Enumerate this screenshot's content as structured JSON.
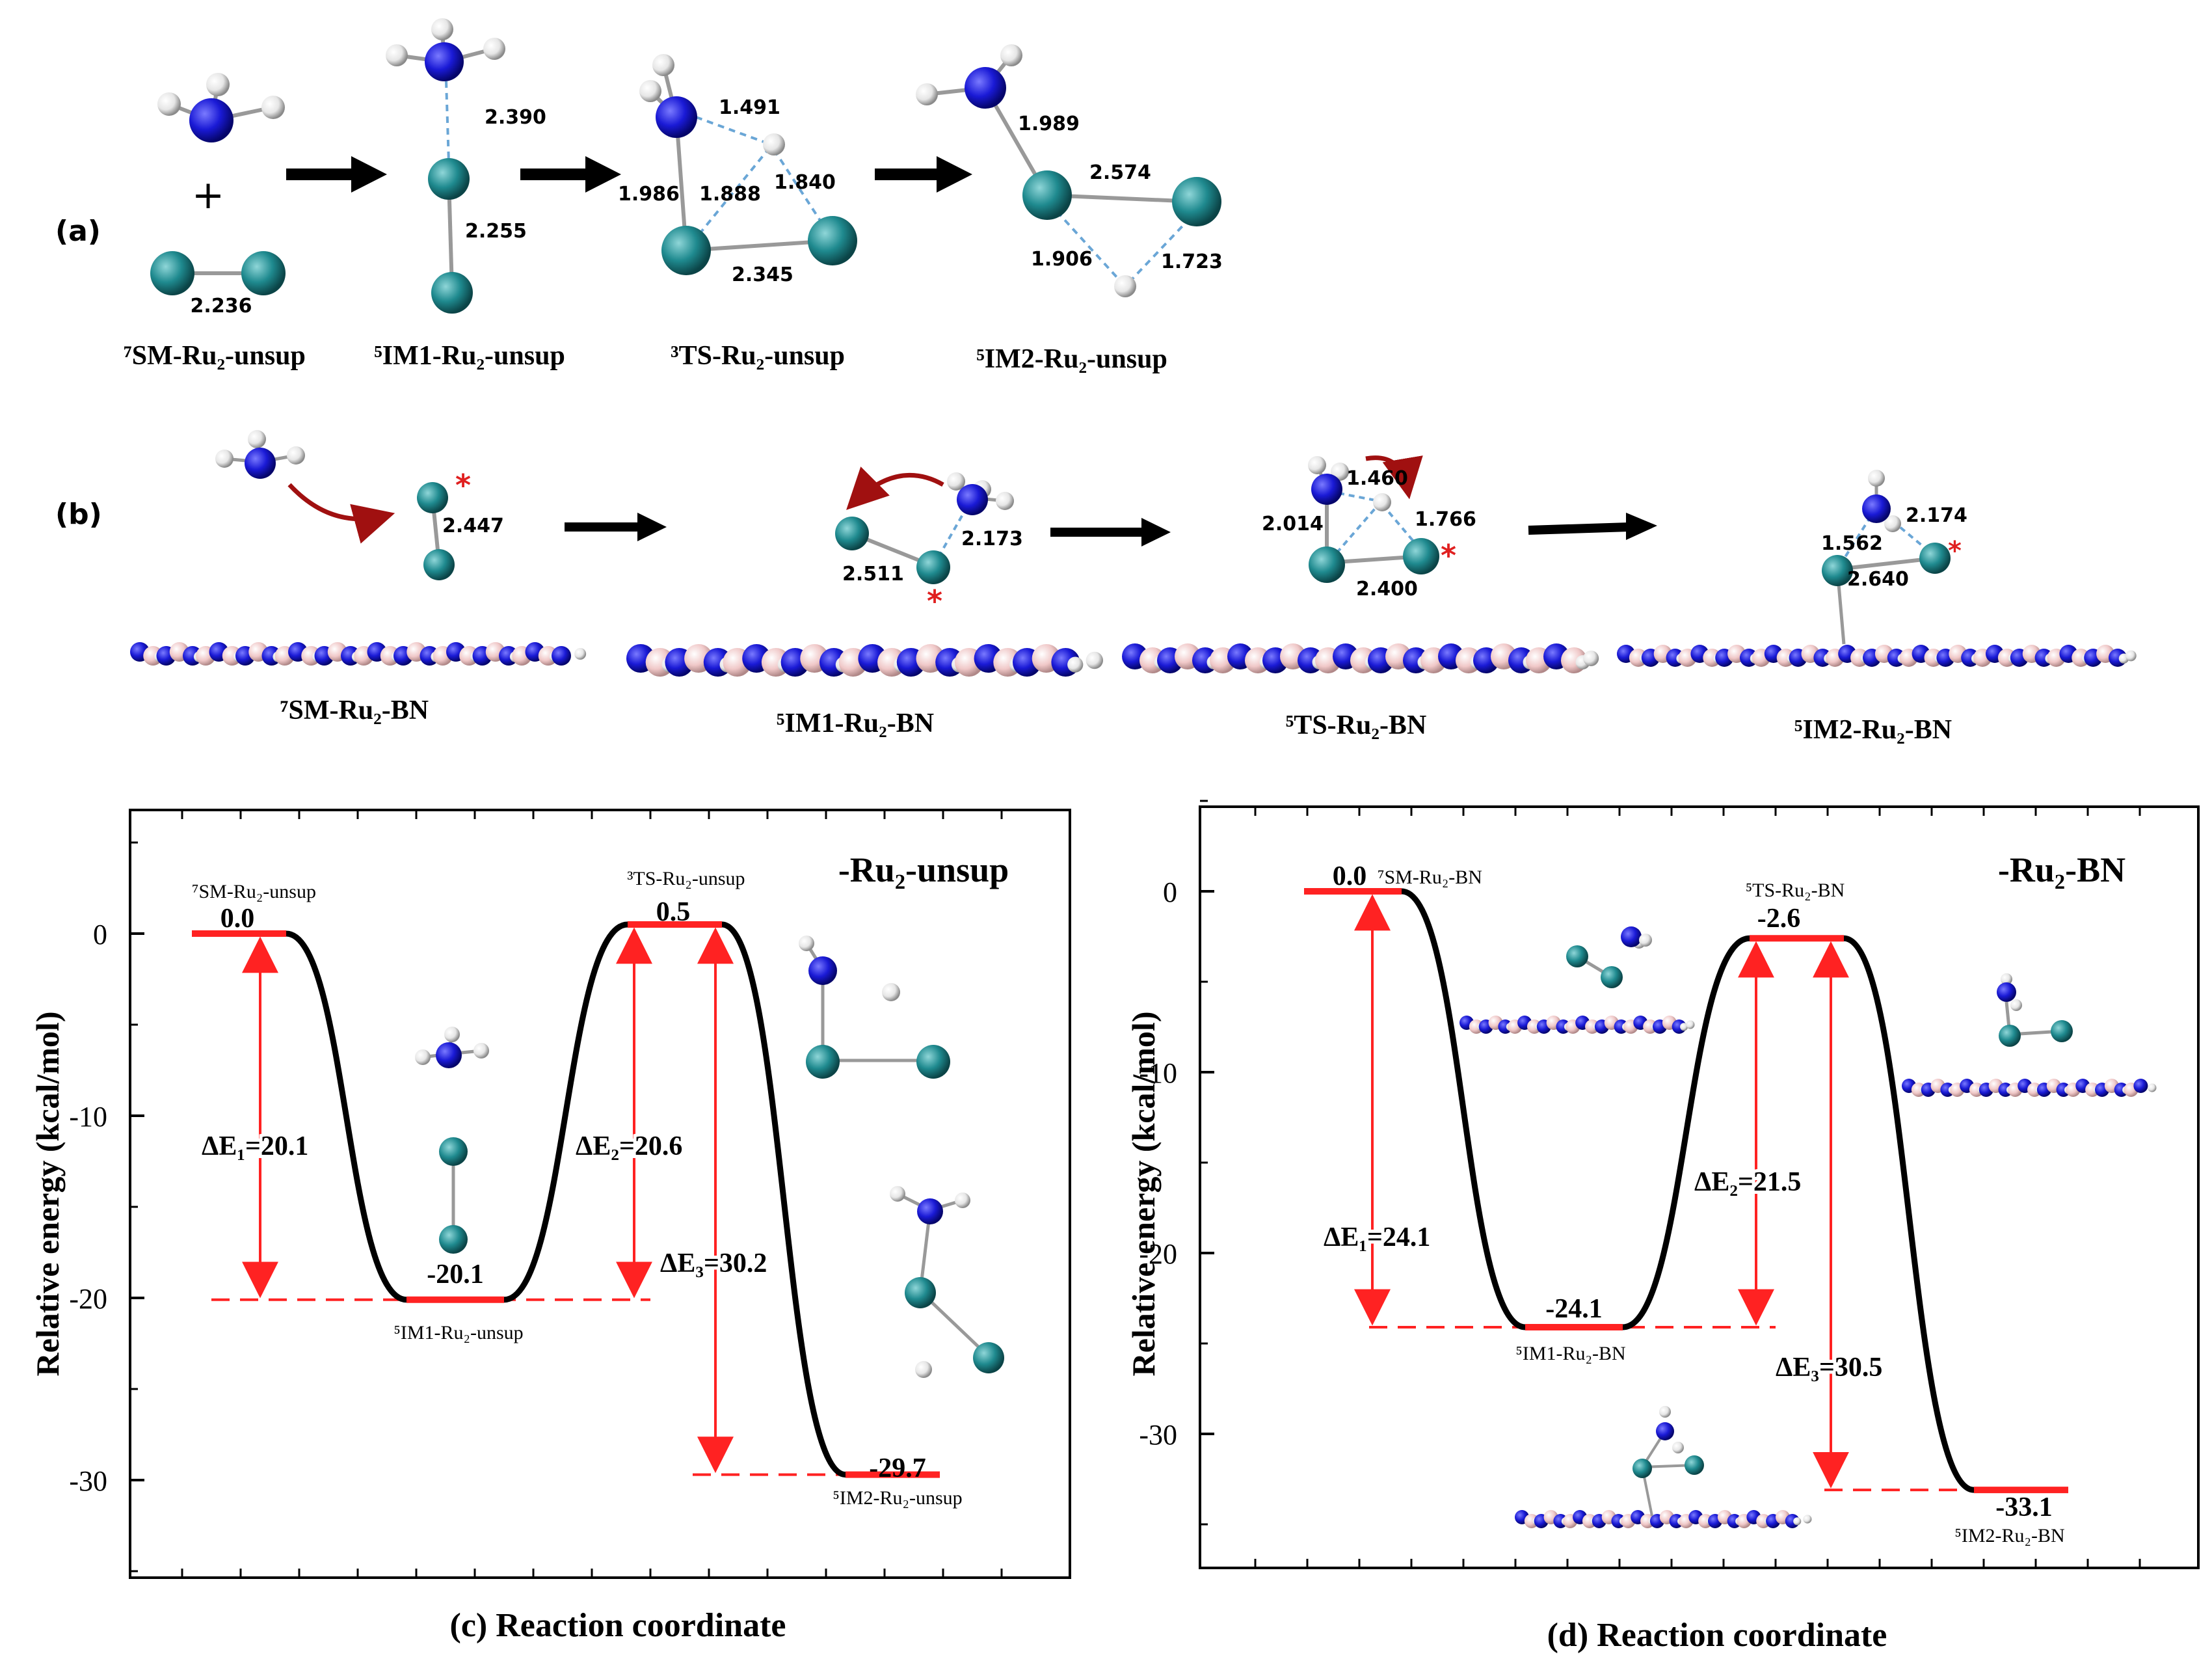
{
  "panel_a": {
    "label": "(a)",
    "plus": "+",
    "names": [
      "⁷SM-Ru₂-unsup",
      "⁵IM1-Ru₂-unsup",
      "³TS-Ru₂-unsup",
      "⁵IM2-Ru₂-unsup"
    ],
    "sm_dist": "2.236",
    "im1_dists": [
      "2.390",
      "2.255"
    ],
    "ts_dists": [
      "1.491",
      "1.986",
      "1.888",
      "1.840",
      "2.345"
    ],
    "im2_dists": [
      "1.989",
      "2.574",
      "1.906",
      "1.723"
    ]
  },
  "panel_b": {
    "label": "(b)",
    "names": [
      "⁷SM-Ru₂-BN",
      "⁵IM1-Ru₂-BN",
      "⁵TS-Ru₂-BN",
      "⁵IM2-Ru₂-BN"
    ],
    "sm_dist": "2.447",
    "im1_dists": [
      "2.173",
      "2.511"
    ],
    "ts_dists": [
      "1.460",
      "2.014",
      "1.766",
      "2.400"
    ],
    "im2_dists": [
      "2.174",
      "1.562",
      "2.640"
    ],
    "asterisk": "*"
  },
  "colors": {
    "nitrogen": "#1a1ad6",
    "ruthenium": "#1f8a8f",
    "hydrogen": "#e6e6e6",
    "boron": "#f0c8c8",
    "level": "#ff2222",
    "curve": "#000000",
    "arrow_red": "#a01010"
  },
  "chart_data": [
    {
      "type": "line",
      "title": "-Ru₂-unsup",
      "xlabel": "(c)  Reaction coordinate",
      "ylabel": "Relative energy  (kcal/mol)",
      "ylim": [
        -35,
        7
      ],
      "yticks": [
        0,
        -10,
        -20,
        -30
      ],
      "ytick_labels": [
        "0",
        "-10",
        "-20",
        "-30"
      ],
      "states": [
        {
          "name": "⁷SM-Ru₂-unsup",
          "energy": 0.0,
          "label": "0.0"
        },
        {
          "name": "⁵IM1-Ru₂-unsup",
          "energy": -20.1,
          "label": "-20.1"
        },
        {
          "name": "³TS-Ru₂-unsup",
          "energy": 0.5,
          "label": "0.5"
        },
        {
          "name": "⁵IM2-Ru₂-unsup",
          "energy": -29.7,
          "label": "-29.7"
        }
      ],
      "annotations": [
        "ΔE₁=20.1",
        "ΔE₂=20.6",
        "ΔE₃=30.2"
      ]
    },
    {
      "type": "line",
      "title": "-Ru₂-BN",
      "xlabel": "(d)  Reaction coordinate",
      "ylabel": "Relative energy  (kcal/mol)",
      "ylim": [
        -37.5,
        5
      ],
      "yticks": [
        0,
        -10,
        -20,
        -30
      ],
      "ytick_labels": [
        "0",
        "-10",
        "-20",
        "-30"
      ],
      "states": [
        {
          "name": "⁷SM-Ru₂-BN",
          "energy": 0.0,
          "label": "0.0"
        },
        {
          "name": "⁵IM1-Ru₂-BN",
          "energy": -24.1,
          "label": "-24.1"
        },
        {
          "name": "⁵TS-Ru₂-BN",
          "energy": -2.6,
          "label": "-2.6"
        },
        {
          "name": "⁵IM2-Ru₂-BN",
          "energy": -33.1,
          "label": "-33.1"
        }
      ],
      "annotations": [
        "ΔE₁=24.1",
        "ΔE₂=21.5",
        "ΔE₃=30.5"
      ]
    }
  ]
}
